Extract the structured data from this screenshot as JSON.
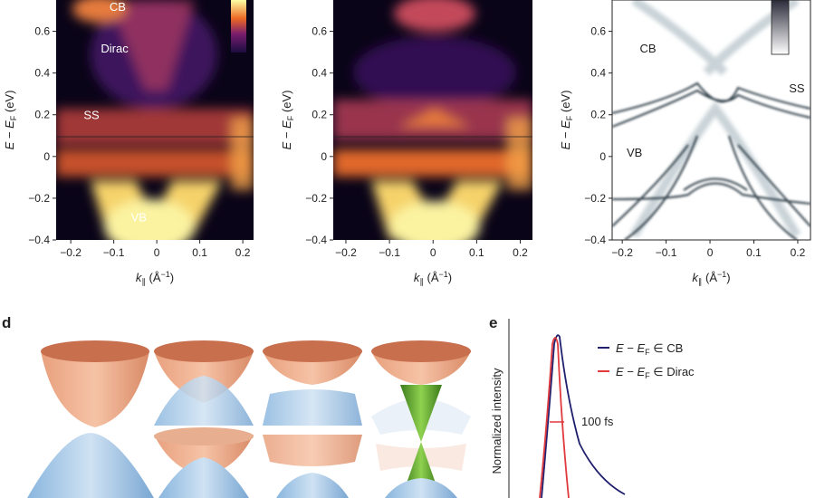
{
  "panels": [
    {
      "kind": "arpes",
      "xlim": [
        -0.234,
        0.225
      ],
      "ylim": [
        -0.4,
        0.75
      ],
      "yticks": [
        0.6,
        0.4,
        0.2,
        0,
        {
          "value": -0.2,
          "label": "−0.2"
        },
        {
          "value": -0.4,
          "label": "−0.4"
        }
      ],
      "xticks": [
        {
          "value": -0.2,
          "label": "−0.2"
        },
        {
          "value": -0.1,
          "label": "−0.1"
        },
        0,
        0.1,
        0.2
      ],
      "annotations": [
        {
          "text": "CB",
          "x": -0.11,
          "y": 0.72
        },
        {
          "text": "Dirac",
          "x": -0.13,
          "y": 0.52
        },
        {
          "text": "SS",
          "x": -0.17,
          "y": 0.2
        },
        {
          "text": "VB",
          "x": -0.06,
          "y": -0.29
        }
      ]
    },
    {
      "kind": "arpes",
      "xlim": [
        -0.229,
        0.228
      ],
      "ylim": [
        -0.4,
        0.75
      ],
      "yticks": [
        0.6,
        0.4,
        0.2,
        0,
        {
          "value": -0.2,
          "label": "−0.2"
        },
        {
          "value": -0.4,
          "label": "−0.4"
        }
      ],
      "xticks": [
        {
          "value": -0.2,
          "label": "−0.2"
        },
        {
          "value": -0.1,
          "label": "−0.1"
        },
        0,
        0.1,
        0.2
      ],
      "annotations": []
    },
    {
      "kind": "theory",
      "xlim": [
        -0.223,
        0.229
      ],
      "ylim": [
        -0.4,
        0.75
      ],
      "yticks": [
        0.6,
        0.4,
        0.2,
        0,
        {
          "value": -0.2,
          "label": "−0.2"
        },
        {
          "value": -0.4,
          "label": "−0.4"
        }
      ],
      "xticks": [
        {
          "value": -0.2,
          "label": "−0.2"
        },
        {
          "value": -0.1,
          "label": "−0.1"
        },
        0,
        0.1,
        0.2
      ],
      "annotations": [
        {
          "text": "CB",
          "x": -0.16,
          "y": 0.52
        },
        {
          "text": "SS",
          "x": 0.18,
          "y": 0.33
        },
        {
          "text": "VB",
          "x": -0.19,
          "y": 0.02
        }
      ]
    }
  ],
  "ylabel": {
    "main": "E − E",
    "sub": "F",
    "unit": " (eV)"
  },
  "xlabel": {
    "main": "k",
    "sub": "∥",
    "unit_a": " (Å",
    "sup": "−1",
    "unit_b": ")"
  },
  "panel_d": {
    "letter": "d"
  },
  "panel_e": {
    "letter": "e",
    "ylabel": "Normalized intensity",
    "annotation": "100 fs",
    "legend": [
      {
        "main": "E − E",
        "sub": "F",
        "rest": " ∈ CB",
        "color": "#1f1f6e"
      },
      {
        "main": "E − E",
        "sub": "F",
        "rest": " ∈ Dirac",
        "color": "#e0393e"
      }
    ]
  }
}
